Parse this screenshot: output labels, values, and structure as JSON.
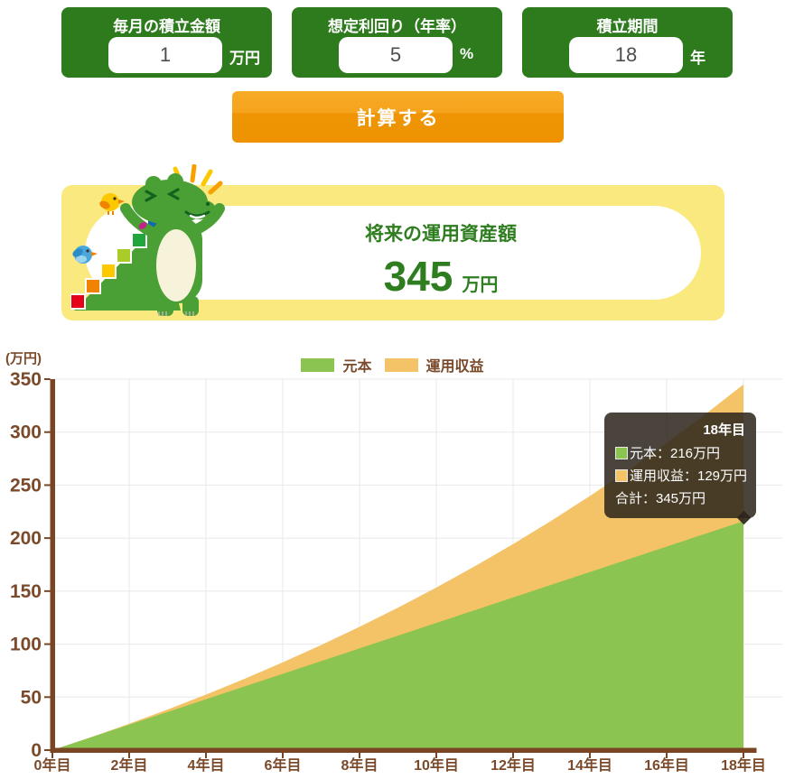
{
  "inputs": [
    {
      "id": "monthly-amount",
      "label": "毎月の積立金額",
      "value": "1",
      "unit": "万円"
    },
    {
      "id": "expected-yield",
      "label": "想定利回り（年率）",
      "value": "5",
      "unit": "%"
    },
    {
      "id": "accumulation-period",
      "label": "積立期間",
      "value": "18",
      "unit": "年"
    }
  ],
  "calculate_button": {
    "label": "計算する"
  },
  "result_card": {
    "title": "将来の運用資産額",
    "amount": "345",
    "unit": "万円",
    "mascot_icon": "crocodile-climbing-stairs-icon"
  },
  "chart_data": {
    "type": "area",
    "stacked": true,
    "ylabel": "(万円)",
    "ylim": [
      0,
      350
    ],
    "y_ticks": [
      0,
      50,
      100,
      150,
      200,
      250,
      300,
      350
    ],
    "x_years": [
      0,
      1,
      2,
      3,
      4,
      5,
      6,
      7,
      8,
      9,
      10,
      11,
      12,
      13,
      14,
      15,
      16,
      17,
      18
    ],
    "x_tick_years": [
      0,
      2,
      4,
      6,
      8,
      10,
      12,
      14,
      16,
      18
    ],
    "x_tick_labels": [
      "0年目",
      "2年目",
      "4年目",
      "6年目",
      "8年目",
      "10年目",
      "12年目",
      "14年目",
      "16年目",
      "18年目"
    ],
    "grid": true,
    "legend_position": "top",
    "series": [
      {
        "name": "元本",
        "color": "#8cc452",
        "values": [
          0,
          12,
          24,
          36,
          48,
          60,
          72,
          84,
          96,
          108,
          120,
          132,
          144,
          156,
          168,
          180,
          192,
          204,
          216
        ]
      },
      {
        "name": "運用収益",
        "color": "#f5c367",
        "values": [
          0,
          0.1,
          0.9,
          2.3,
          4.4,
          7.2,
          10.8,
          15.1,
          20.3,
          26.4,
          33.4,
          41.4,
          50.4,
          60.5,
          71.7,
          84.1,
          97.7,
          112.7,
          129
        ]
      }
    ],
    "final_values": {
      "principal": 216,
      "profit": 129,
      "total": 345
    }
  },
  "tooltip": {
    "title": "18年目",
    "rows": [
      {
        "swatch": "#8cc452",
        "text": "元本：216万円"
      },
      {
        "swatch": "#f5c367",
        "text": "運用収益：129万円"
      },
      {
        "swatch": null,
        "text": "合計：345万円"
      }
    ]
  },
  "colors": {
    "panel_green": "#2e7b1e",
    "button_orange": "#f09303",
    "card_yellow": "#fae97e",
    "result_green": "#2e7d1f",
    "text_brown": "#7b4a2b",
    "axis_brown": "#7a4522",
    "area_green": "#8cc452",
    "area_orange": "#f5c367",
    "grid_gray": "#e8e8e8"
  }
}
